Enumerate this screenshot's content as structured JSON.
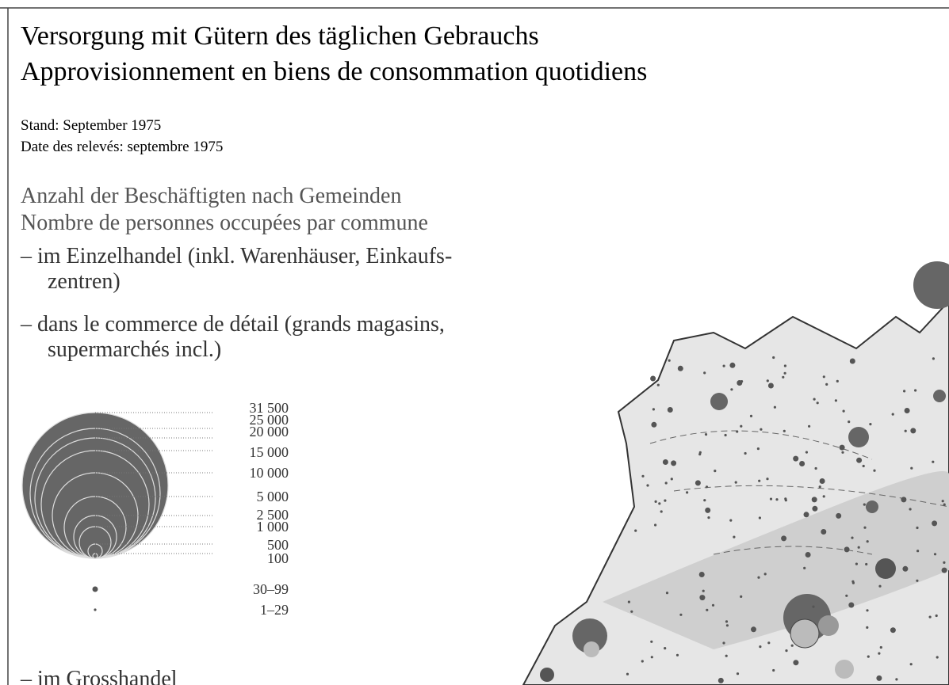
{
  "header": {
    "title_de": "Versorgung mit Gütern des täglichen Gebrauchs",
    "title_fr": "Approvisionnement en biens de consommation quotidiens",
    "date_de": "Stand: September 1975",
    "date_fr": "Date des relevés: septembre 1975"
  },
  "section": {
    "heading_de": "Anzahl der Beschäftigten nach Gemeinden",
    "heading_fr": "Nombre de personnes occupées par commune",
    "items": [
      {
        "lines": [
          "– im Einzelhandel (inkl. Warenhäuser, Einkaufs-",
          "zentren)"
        ]
      },
      {
        "lines": [
          "– dans le commerce de détail (grands magasins,",
          "supermarchés incl.)"
        ]
      }
    ]
  },
  "legend": {
    "scale": [
      "31 500",
      "25 000",
      "20 000",
      "15 000",
      "10 000",
      "5 000",
      "2 500",
      "1 000",
      "500",
      "100"
    ],
    "small": [
      "30–99",
      "1–29"
    ]
  },
  "next_item": "– im Grosshandel"
}
